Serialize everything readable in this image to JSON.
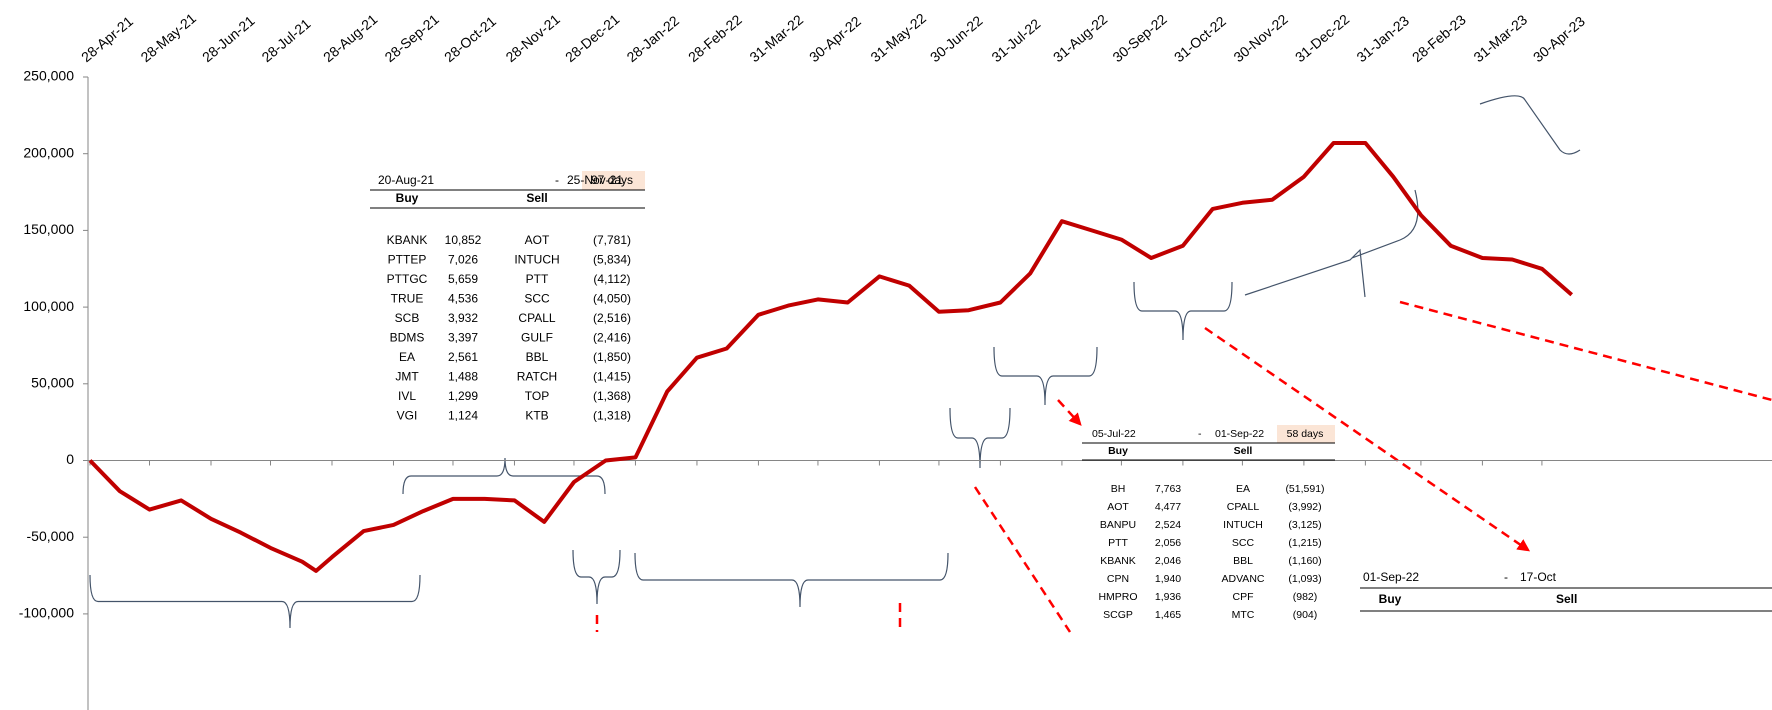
{
  "chart_data": {
    "type": "line",
    "x": [
      "2021-04-28",
      "2021-05-13",
      "2021-05-28",
      "2021-06-13",
      "2021-06-28",
      "2021-07-13",
      "2021-07-28",
      "2021-08-13",
      "2021-08-20",
      "2021-08-28",
      "2021-09-13",
      "2021-09-28",
      "2021-10-13",
      "2021-10-28",
      "2021-11-13",
      "2021-11-28",
      "2021-12-13",
      "2021-12-28",
      "2022-01-13",
      "2022-01-28",
      "2022-02-13",
      "2022-02-28",
      "2022-03-15",
      "2022-03-31",
      "2022-04-15",
      "2022-04-30",
      "2022-05-15",
      "2022-05-31",
      "2022-06-15",
      "2022-06-30",
      "2022-07-15",
      "2022-07-31",
      "2022-08-15",
      "2022-08-31",
      "2022-09-15",
      "2022-09-30",
      "2022-10-15",
      "2022-10-31",
      "2022-11-15",
      "2022-11-30",
      "2022-12-15",
      "2022-12-31",
      "2023-01-15",
      "2023-01-31",
      "2023-02-14",
      "2023-02-28",
      "2023-03-15",
      "2023-03-31",
      "2023-04-15",
      "2023-04-30",
      "2023-05-15"
    ],
    "series": [
      {
        "color": "#c00000",
        "values": [
          0,
          -20000,
          -32000,
          -26000,
          -38000,
          -47000,
          -57000,
          -66000,
          -72000,
          -63000,
          -46000,
          -42000,
          -33000,
          -25000,
          -25000,
          -26000,
          -40000,
          -14000,
          0,
          2000,
          45000,
          67000,
          73000,
          95000,
          101000,
          105000,
          103000,
          120000,
          114000,
          97000,
          98000,
          103000,
          122000,
          156000,
          150000,
          144000,
          132000,
          140000,
          164000,
          168000,
          170000,
          185000,
          207000,
          207000,
          185000,
          160000,
          140000,
          132000,
          131000,
          125000,
          108000
        ]
      }
    ],
    "xlim": [
      "2021-04-28",
      "2023-08-24"
    ],
    "xticks": [
      {
        "value": "2021-04-28",
        "label": "28-Apr-21"
      },
      {
        "value": "2021-05-28",
        "label": "28-May-21"
      },
      {
        "value": "2021-06-28",
        "label": "28-Jun-21"
      },
      {
        "value": "2021-07-28",
        "label": "28-Jul-21"
      },
      {
        "value": "2021-08-28",
        "label": "28-Aug-21"
      },
      {
        "value": "2021-09-28",
        "label": "28-Sep-21"
      },
      {
        "value": "2021-10-28",
        "label": "28-Oct-21"
      },
      {
        "value": "2021-11-28",
        "label": "28-Nov-21"
      },
      {
        "value": "2021-12-28",
        "label": "28-Dec-21"
      },
      {
        "value": "2022-01-28",
        "label": "28-Jan-22"
      },
      {
        "value": "2022-02-28",
        "label": "28-Feb-22"
      },
      {
        "value": "2022-03-31",
        "label": "31-Mar-22"
      },
      {
        "value": "2022-04-30",
        "label": "30-Apr-22"
      },
      {
        "value": "2022-05-31",
        "label": "31-May-22"
      },
      {
        "value": "2022-06-30",
        "label": "30-Jun-22"
      },
      {
        "value": "2022-07-31",
        "label": "31-Jul-22"
      },
      {
        "value": "2022-08-31",
        "label": "31-Aug-22"
      },
      {
        "value": "2022-09-30",
        "label": "30-Sep-22"
      },
      {
        "value": "2022-10-31",
        "label": "31-Oct-22"
      },
      {
        "value": "2022-11-30",
        "label": "30-Nov-22"
      },
      {
        "value": "2022-12-31",
        "label": "31-Dec-22"
      },
      {
        "value": "2023-01-31",
        "label": "31-Jan-23"
      },
      {
        "value": "2023-02-28",
        "label": "28-Feb-23"
      },
      {
        "value": "2023-03-31",
        "label": "31-Mar-23"
      },
      {
        "value": "2023-04-30",
        "label": "30-Apr-23"
      }
    ],
    "ylim": [
      -150000,
      250000
    ],
    "yticks": [
      {
        "value": 250000,
        "label": "250,000"
      },
      {
        "value": 200000,
        "label": "200,000"
      },
      {
        "value": 150000,
        "label": "150,000"
      },
      {
        "value": 100000,
        "label": "100,000"
      },
      {
        "value": 50000,
        "label": "50,000"
      },
      0,
      {
        "value": -50000,
        "label": "-50,000"
      },
      {
        "value": -100000,
        "label": "-100,000"
      }
    ],
    "negative_tick_color": "#ff0000",
    "grid": false
  },
  "tables": [
    {
      "header": [
        "20-Aug-21",
        "-",
        "25-Nov-21",
        "97 days"
      ],
      "columns": [
        "Buy",
        "Sell"
      ],
      "rows": [
        [
          "KBANK",
          "10,852",
          "AOT",
          "(7,781)"
        ],
        [
          "PTTEP",
          "7,026",
          "INTUCH",
          "(5,834)"
        ],
        [
          "PTTGC",
          "5,659",
          "PTT",
          "(4,112)"
        ],
        [
          "TRUE",
          "4,536",
          "SCC",
          "(4,050)"
        ],
        [
          "SCB",
          "3,932",
          "CPALL",
          "(2,516)"
        ],
        [
          "BDMS",
          "3,397",
          "GULF",
          "(2,416)"
        ],
        [
          "EA",
          "2,561",
          "BBL",
          "(1,850)"
        ],
        [
          "JMT",
          "1,488",
          "RATCH",
          "(1,415)"
        ],
        [
          "IVL",
          "1,299",
          "TOP",
          "(1,368)"
        ],
        [
          "VGI",
          "1,124",
          "KTB",
          "(1,318)"
        ]
      ]
    },
    {
      "header": [
        "05-Jul-22",
        "-",
        "01-Sep-22",
        "58 days"
      ],
      "columns": [
        "Buy",
        "Sell"
      ],
      "rows": [
        [
          "BH",
          "7,763",
          "EA",
          "(51,591)"
        ],
        [
          "AOT",
          "4,477",
          "CPALL",
          "(3,992)"
        ],
        [
          "BANPU",
          "2,524",
          "INTUCH",
          "(3,125)"
        ],
        [
          "PTT",
          "2,056",
          "SCC",
          "(1,215)"
        ],
        [
          "KBANK",
          "2,046",
          "BBL",
          "(1,160)"
        ],
        [
          "CPN",
          "1,940",
          "ADVANC",
          "(1,093)"
        ],
        [
          "HMPRO",
          "1,936",
          "CPF",
          "(982)"
        ],
        [
          "SCGP",
          "1,465",
          "MTC",
          "(904)"
        ]
      ]
    },
    {
      "header": [
        "01-Sep-22",
        "-",
        "17-Oct"
      ],
      "columns": [
        "Buy",
        "Sell"
      ],
      "rows": []
    }
  ]
}
